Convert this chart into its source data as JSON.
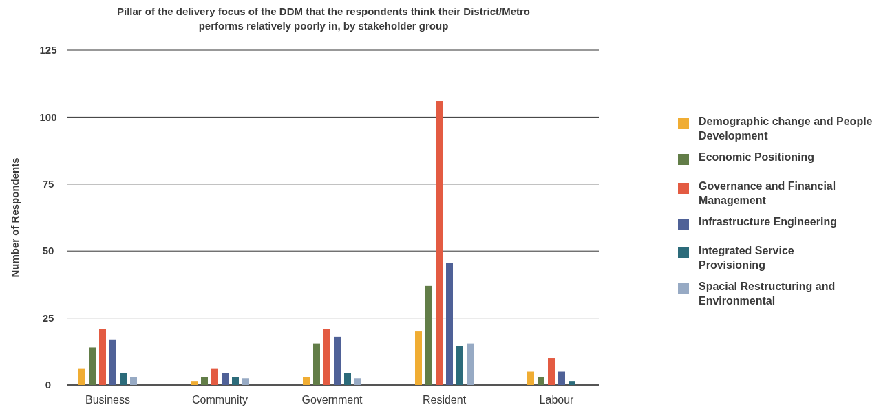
{
  "chart_data": {
    "type": "bar",
    "title": "Pillar of the delivery focus of the DDM that the respondents think their District/Metro performs relatively poorly in, by stakeholder group",
    "ylabel": "Number of Respondents",
    "categories": [
      "Business",
      "Community",
      "Government",
      "Resident",
      "Labour"
    ],
    "series": [
      {
        "name": "Demographic change and People Development",
        "color": "#f0ad33",
        "values": [
          6,
          1.5,
          3,
          20,
          5
        ]
      },
      {
        "name": "Economic Positioning",
        "color": "#627d48",
        "values": [
          14,
          3,
          15.5,
          37,
          3
        ]
      },
      {
        "name": "Governance and Financial Management",
        "color": "#e35b42",
        "values": [
          21,
          6,
          21,
          106,
          10
        ]
      },
      {
        "name": "Infrastructure Engineering",
        "color": "#4f6197",
        "values": [
          17,
          4.5,
          18,
          45.5,
          5
        ]
      },
      {
        "name": "Integrated Service Provisioning",
        "color": "#2c6b7a",
        "values": [
          4.5,
          3,
          4.5,
          14.5,
          1.5
        ]
      },
      {
        "name": "Spacial Restructuring and Environmental",
        "color": "#97aac4",
        "values": [
          3,
          2.5,
          2.5,
          15.5,
          null
        ]
      }
    ],
    "ylim": [
      0,
      125
    ],
    "yticks": [
      0,
      25,
      50,
      75,
      100,
      125
    ],
    "grid": "y",
    "legend": "right"
  }
}
